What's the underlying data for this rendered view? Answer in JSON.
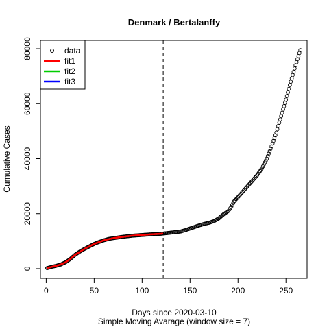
{
  "chart_data": {
    "type": "scatter",
    "title": "Denmark / Bertalanffy",
    "xlabel": "Days since 2020-03-10",
    "sublabel": "Simple Moving Avarage (window size = 7)",
    "ylabel": "Cumulative Cases",
    "xlim": [
      -6,
      272
    ],
    "ylim": [
      -3500,
      83000
    ],
    "x_ticks": [
      0,
      50,
      100,
      150,
      200,
      250
    ],
    "y_ticks": [
      0,
      20000,
      40000,
      60000,
      80000
    ],
    "vline_x": 122,
    "legend": {
      "position": "top-left",
      "entries": [
        {
          "label": "data",
          "symbol": "circle",
          "color": "#000000"
        },
        {
          "label": "fit1",
          "symbol": "line",
          "color": "#ff0000"
        },
        {
          "label": "fit2",
          "symbol": "line",
          "color": "#00cd00"
        },
        {
          "label": "fit3",
          "symbol": "line",
          "color": "#0000ff"
        }
      ]
    },
    "data_anchors": {
      "x": [
        1,
        3,
        6,
        10,
        15,
        20,
        25,
        30,
        35,
        40,
        45,
        50,
        55,
        60,
        65,
        70,
        80,
        90,
        100,
        110,
        120,
        125,
        130,
        135,
        140,
        145,
        150,
        155,
        160,
        165,
        170,
        175,
        180,
        185,
        190,
        193,
        196,
        200,
        205,
        210,
        215,
        220,
        225,
        230,
        235,
        240,
        245,
        250,
        255,
        260,
        265
      ],
      "y": [
        200,
        400,
        700,
        1000,
        1500,
        2300,
        3500,
        5000,
        6200,
        7200,
        8100,
        9000,
        9700,
        10300,
        10800,
        11100,
        11600,
        12000,
        12250,
        12500,
        12700,
        12900,
        13100,
        13300,
        13500,
        14000,
        14600,
        15200,
        15800,
        16300,
        16700,
        17300,
        18300,
        19800,
        21000,
        22500,
        24500,
        26000,
        28000,
        30000,
        32000,
        34000,
        36500,
        40000,
        44500,
        49500,
        55500,
        61500,
        68000,
        74000,
        79500
      ]
    },
    "fit1": {
      "color": "#ff0000",
      "x_range": [
        1,
        122
      ],
      "x": [
        1,
        5,
        10,
        15,
        20,
        25,
        30,
        40,
        50,
        60,
        70,
        80,
        90,
        100,
        110,
        122
      ],
      "y": [
        200,
        600,
        1000,
        1500,
        2300,
        3500,
        5000,
        7200,
        9000,
        10300,
        11100,
        11600,
        12000,
        12250,
        12500,
        12750
      ]
    }
  }
}
